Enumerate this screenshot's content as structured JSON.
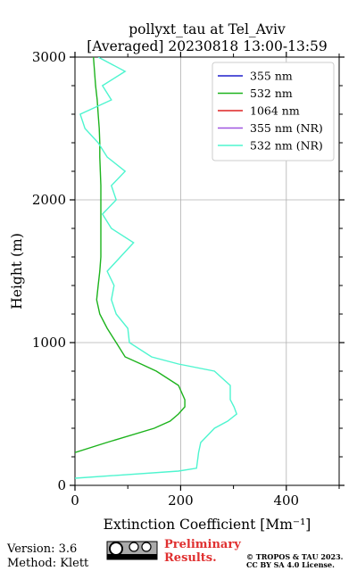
{
  "chart_data": {
    "type": "line",
    "title": [
      "pollyxt_tau at Tel_Aviv",
      "[Averaged] 20230818 13:00-13:59"
    ],
    "x_label": "Extinction Coefficient [Mm⁻¹]",
    "y_label": "Height (m)",
    "y": [
      0,
      50,
      100,
      120,
      200,
      230,
      300,
      400,
      450,
      500,
      550,
      600,
      700,
      800,
      850,
      900,
      1000,
      1100,
      1200,
      1300,
      1400,
      1500,
      1600,
      1700,
      1800,
      1900,
      2000,
      2100,
      2200,
      2300,
      2400,
      2500,
      2600,
      2700,
      2800,
      2900,
      3000
    ],
    "series": [
      {
        "name": "355 nm",
        "color": "#1f1fcc",
        "values": [
          null,
          null,
          null,
          null,
          null,
          null,
          null,
          null,
          null,
          null,
          null,
          null,
          null,
          null,
          null,
          null,
          null,
          null,
          null,
          null,
          null,
          null,
          null,
          null,
          null,
          null,
          null,
          null,
          null,
          null,
          null,
          null,
          null,
          null,
          null,
          null,
          null
        ]
      },
      {
        "name": "532 nm",
        "color": "#1db31d",
        "values": [
          null,
          null,
          null,
          null,
          null,
          0,
          60,
          150,
          180,
          196,
          208,
          208,
          196,
          154,
          125,
          95,
          78,
          61,
          47,
          41,
          44,
          47,
          49,
          49,
          49,
          49,
          49,
          49,
          48,
          47,
          47,
          46,
          44,
          42,
          39,
          37,
          35
        ]
      },
      {
        "name": "1064 nm",
        "color": "#dd2222",
        "values": [
          null,
          null,
          null,
          null,
          null,
          null,
          null,
          null,
          null,
          null,
          null,
          null,
          null,
          null,
          null,
          null,
          null,
          null,
          null,
          null,
          null,
          null,
          null,
          null,
          null,
          null,
          null,
          null,
          null,
          null,
          null,
          null,
          null,
          null,
          null,
          null,
          null
        ]
      },
      {
        "name": "355 nm (NR)",
        "color": "#a055e0",
        "values": [
          null,
          null,
          null,
          null,
          null,
          null,
          null,
          null,
          null,
          null,
          null,
          null,
          null,
          null,
          null,
          null,
          null,
          null,
          null,
          null,
          null,
          null,
          null,
          null,
          null,
          null,
          null,
          null,
          null,
          null,
          null,
          null,
          null,
          null,
          null,
          null,
          null
        ]
      },
      {
        "name": "532 nm (NR)",
        "color": "#4ef5cf",
        "values": [
          null,
          0,
          196,
          230,
          233,
          234,
          238,
          264,
          289,
          306,
          301,
          294,
          294,
          264,
          196,
          145,
          103,
          100,
          78,
          69,
          74,
          61,
          86,
          111,
          69,
          52,
          78,
          69,
          95,
          61,
          44,
          19,
          10,
          69,
          52,
          95,
          44
        ]
      }
    ],
    "xlim": [
      0,
      500
    ],
    "xticks": [
      0,
      200,
      400
    ],
    "xminorticks": [
      100,
      300,
      500
    ],
    "ylim": [
      0,
      3000
    ],
    "yticks": [
      0,
      1000,
      2000,
      3000
    ],
    "yminorticks": [
      200,
      400,
      600,
      800,
      1200,
      1400,
      1600,
      1800,
      2200,
      2400,
      2600,
      2800
    ],
    "grid": true,
    "legend": "upper right"
  },
  "footer": {
    "version": "Version: 3.6",
    "method": "Method: Klett",
    "preliminary": "Preliminary Results.",
    "copyright": "© TROPOS & TAU 2023.",
    "license": "CC BY SA 4.0 License."
  }
}
